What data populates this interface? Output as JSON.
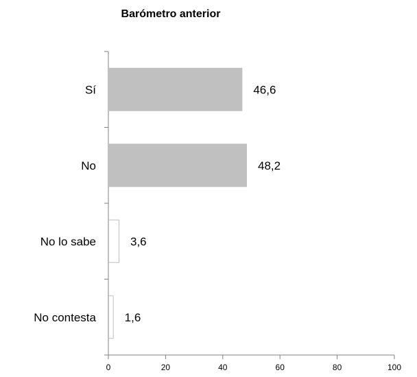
{
  "chart_data": {
    "type": "bar",
    "orientation": "horizontal",
    "title": "Barómetro anterior",
    "categories": [
      "Sí",
      "No",
      "No lo sabe",
      "No contesta"
    ],
    "values": [
      46.6,
      48.2,
      3.6,
      1.6
    ],
    "value_labels": [
      "46,6",
      "48,2",
      "3,6",
      "1,6"
    ],
    "xlim": [
      0,
      100
    ],
    "x_ticks": [
      0,
      20,
      40,
      60,
      80,
      100
    ],
    "x_tick_labels": [
      "0",
      "20",
      "40",
      "60",
      "80",
      "100"
    ],
    "xlabel": "",
    "ylabel": "",
    "grid": false,
    "legend": "none",
    "bar_fills": [
      "#c0c0c0",
      "#c0c0c0",
      "#ffffff",
      "#ffffff"
    ],
    "bar_strokes": [
      "#c0c0c0",
      "#c0c0c0",
      "#bfbfbf",
      "#bfbfbf"
    ]
  }
}
